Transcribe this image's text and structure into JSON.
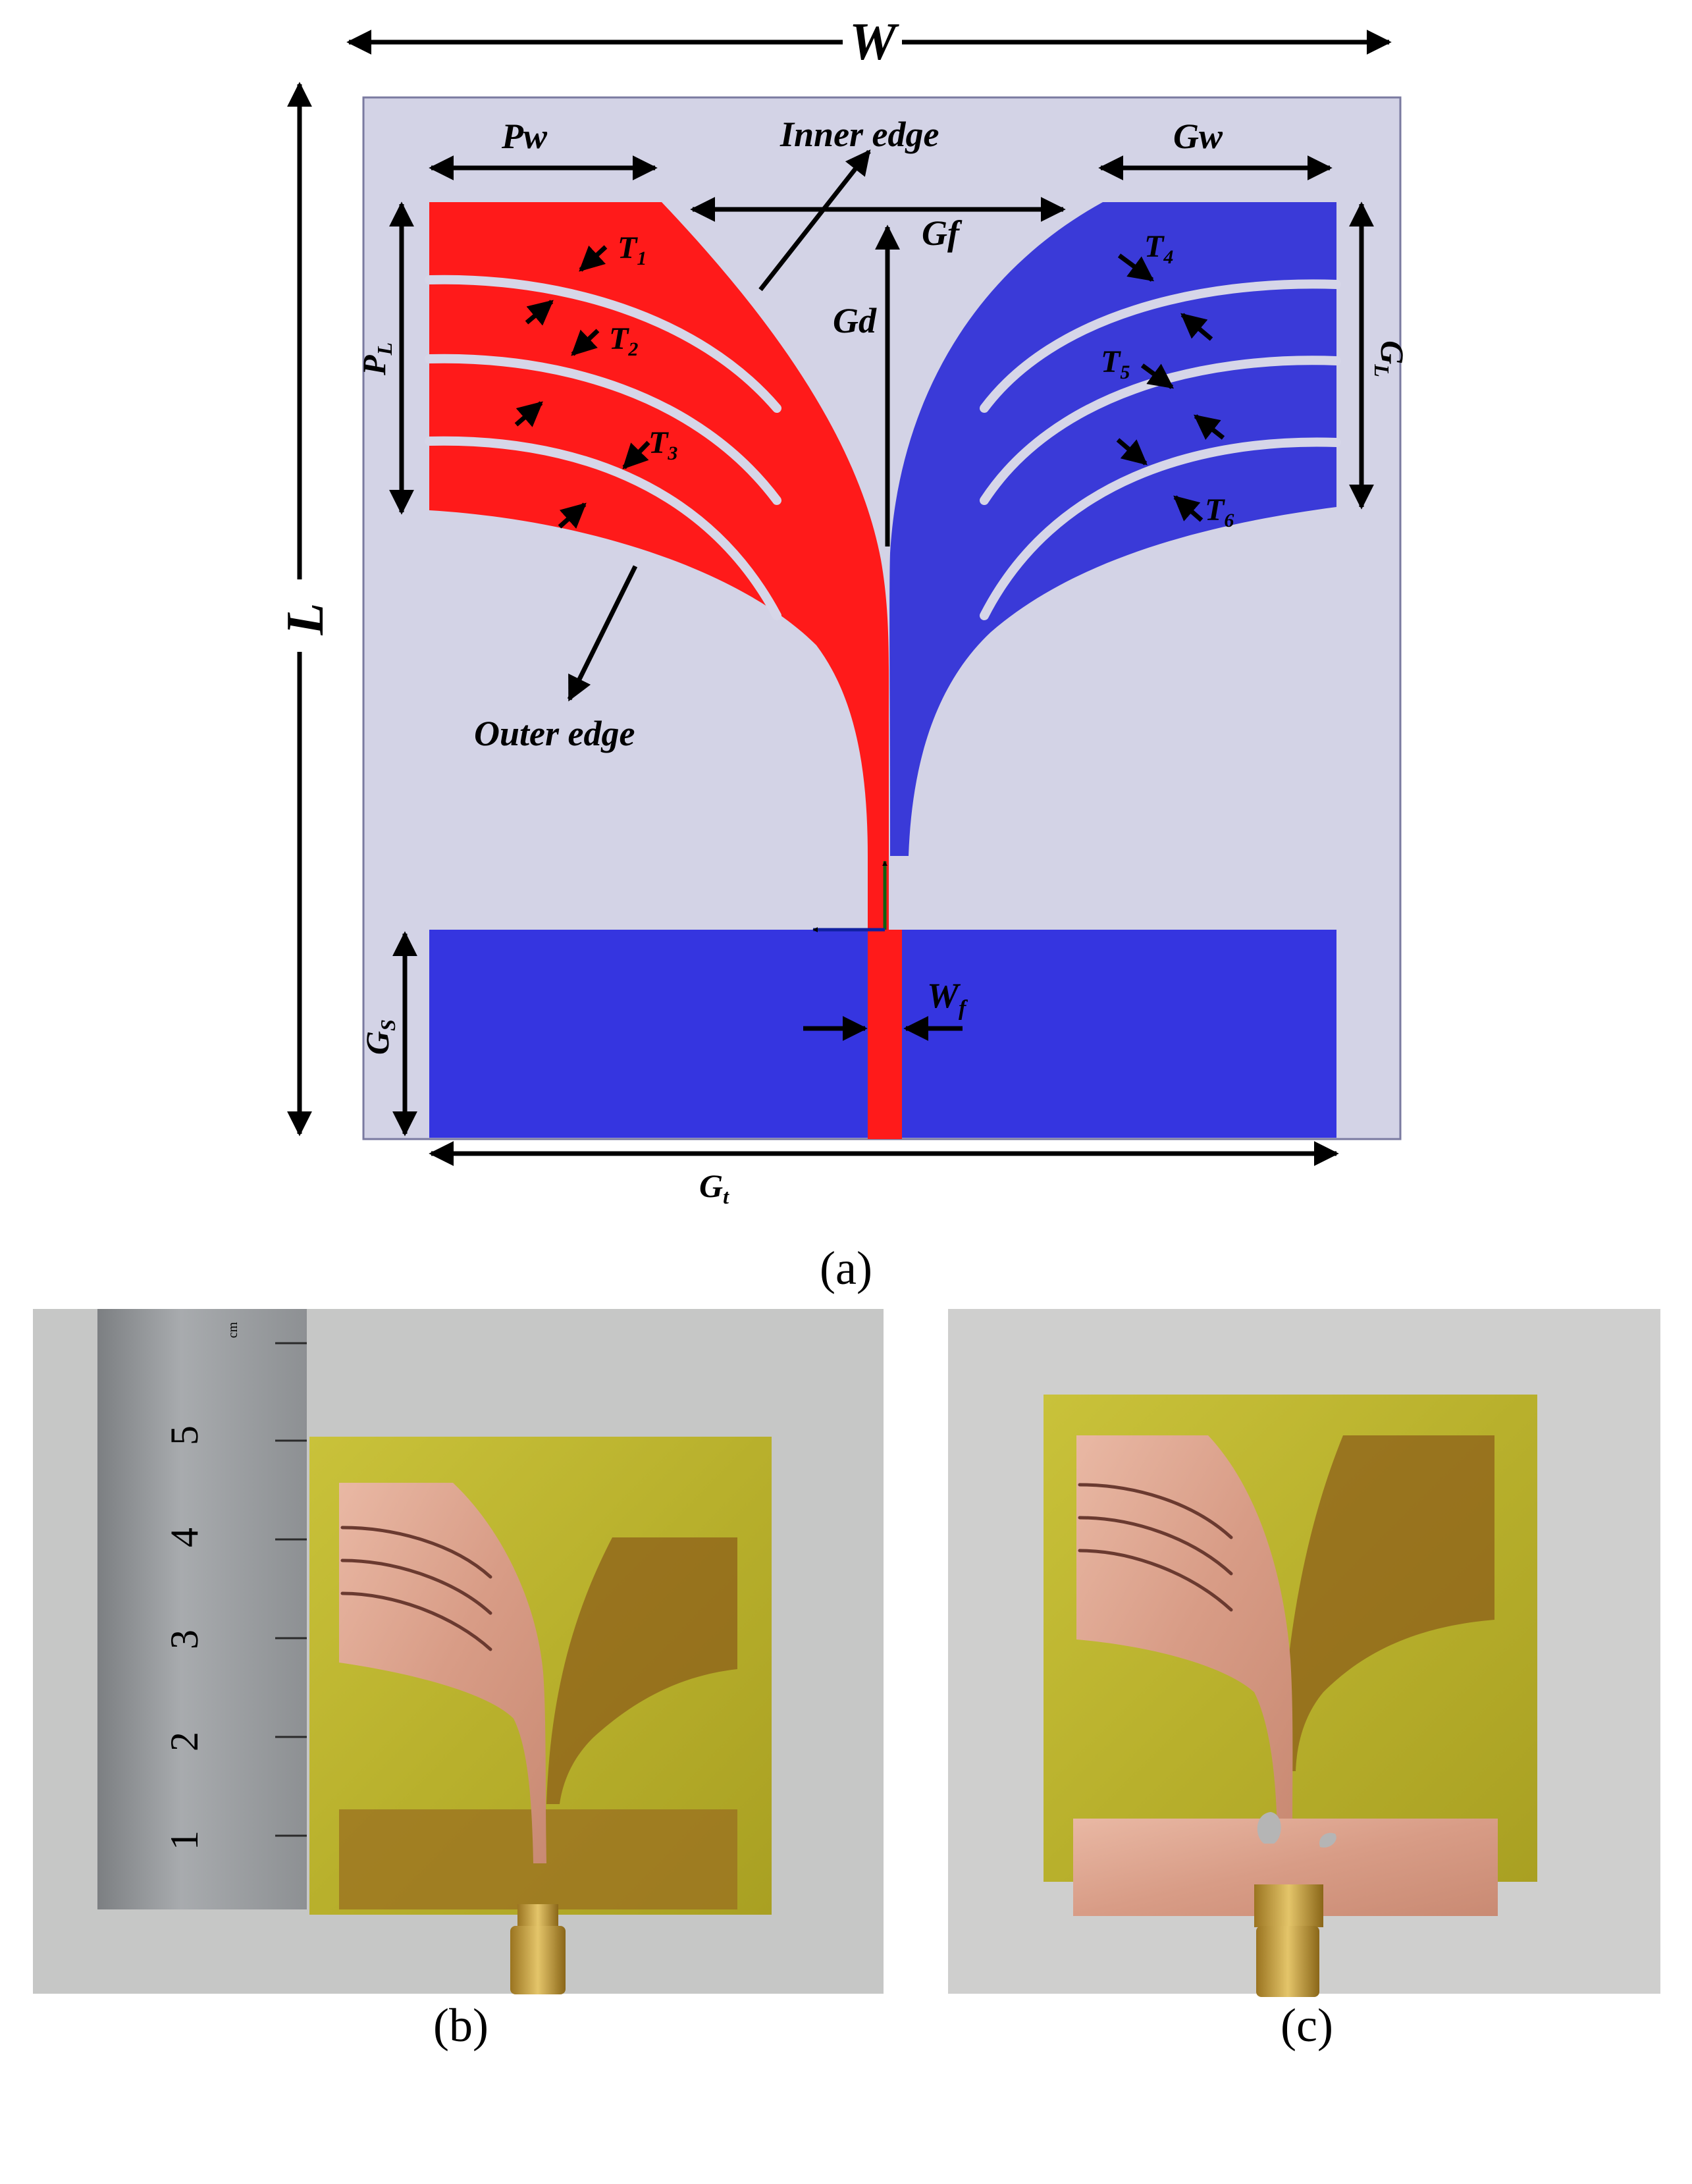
{
  "diagram": {
    "labels": {
      "W": "W",
      "L": "L",
      "Pw": "Pw",
      "PL_main": "P",
      "PL_sub": "L",
      "Gw": "Gw",
      "GL_main": "G",
      "GL_sub": "L",
      "Gf": "Gf",
      "Gd": "Gd",
      "Gs_main": "G",
      "Gs_sub": "S",
      "Gt_main": "G",
      "Gt_sub": "t",
      "Wf_main": "W",
      "Wf_sub": "f",
      "inner_edge": "Inner edge",
      "outer_edge": "Outer edge",
      "T1_main": "T",
      "T1_sub": "1",
      "T2_main": "T",
      "T2_sub": "2",
      "T3_main": "T",
      "T3_sub": "3",
      "T4_main": "T",
      "T4_sub": "4",
      "T5_main": "T",
      "T5_sub": "5",
      "T6_main": "T",
      "T6_sub": "6"
    },
    "colors": {
      "substrate": "#d3d3e6",
      "patch": "#ff1a1a",
      "ground": "#3535e0",
      "ground_patch": "#3a3ad8",
      "slot": "#d6d6e8"
    }
  },
  "photos": {
    "ruler_ticks": [
      "1",
      "2",
      "3",
      "4",
      "5"
    ],
    "ruler_unit": "cm"
  },
  "captions": {
    "a": "(a)",
    "b": "(b)",
    "c": "(c)"
  }
}
